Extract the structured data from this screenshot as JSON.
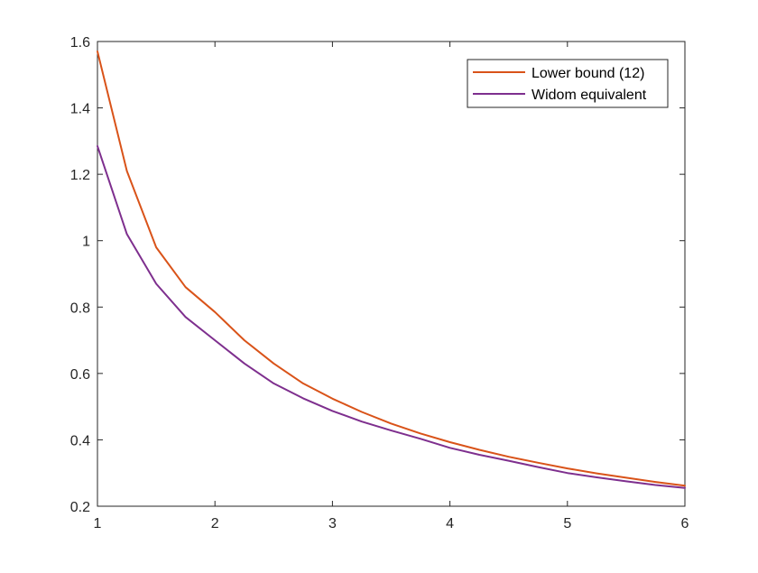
{
  "chart_data": {
    "type": "line",
    "title": "",
    "xlabel": "",
    "ylabel": "",
    "xlim": [
      1,
      6
    ],
    "ylim": [
      0.2,
      1.6
    ],
    "xticks": [
      1,
      2,
      3,
      4,
      5,
      6
    ],
    "yticks": [
      0.2,
      0.4,
      0.6,
      0.8,
      1,
      1.2,
      1.4,
      1.6
    ],
    "grid": false,
    "legend_position": "top-right",
    "series": [
      {
        "name": "Lower bound (12)",
        "color": "#D95319",
        "x": [
          1,
          1.25,
          1.5,
          1.75,
          2,
          2.25,
          2.5,
          2.75,
          3,
          3.25,
          3.5,
          3.75,
          4,
          4.25,
          4.5,
          4.75,
          5,
          5.25,
          5.5,
          5.75,
          6
        ],
        "y": [
          1.57,
          1.21,
          0.98,
          0.86,
          0.785,
          0.7,
          0.63,
          0.57,
          0.524,
          0.484,
          0.449,
          0.419,
          0.393,
          0.37,
          0.349,
          0.331,
          0.314,
          0.299,
          0.286,
          0.273,
          0.262
        ]
      },
      {
        "name": "Widom equivalent",
        "color": "#7E2F8E",
        "x": [
          1,
          1.25,
          1.5,
          1.75,
          2,
          2.25,
          2.5,
          2.75,
          3,
          3.25,
          3.5,
          3.75,
          4,
          4.25,
          4.5,
          4.75,
          5,
          5.25,
          5.5,
          5.75,
          6
        ],
        "y": [
          1.285,
          1.02,
          0.87,
          0.77,
          0.7,
          0.63,
          0.57,
          0.525,
          0.487,
          0.455,
          0.428,
          0.403,
          0.376,
          0.355,
          0.337,
          0.318,
          0.3,
          0.287,
          0.275,
          0.264,
          0.255
        ]
      }
    ]
  }
}
